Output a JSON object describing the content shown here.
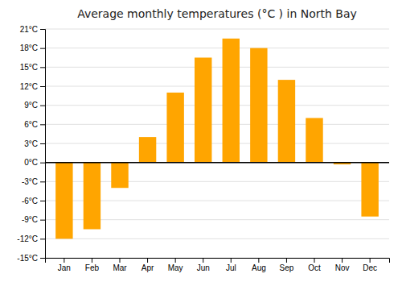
{
  "chart_data": {
    "type": "bar",
    "title": "Average monthly temperatures (°C ) in North Bay",
    "categories": [
      "Jan",
      "Feb",
      "Mar",
      "Apr",
      "May",
      "Jun",
      "Jul",
      "Aug",
      "Sep",
      "Oct",
      "Nov",
      "Dec"
    ],
    "values": [
      -12,
      -10.5,
      -4,
      4,
      11,
      16.5,
      19.5,
      18,
      13,
      7,
      -0.3,
      -8.5
    ],
    "color": "#FFA500",
    "ylim": [
      -15,
      21
    ],
    "yticks": [
      {
        "value": -15,
        "label": "-15°C"
      },
      {
        "value": -12,
        "label": "-12°C"
      },
      {
        "value": -9,
        "label": "-9°C"
      },
      {
        "value": -6,
        "label": "-6°C"
      },
      {
        "value": -3,
        "label": "-3°C"
      },
      {
        "value": 0,
        "label": "0°C"
      },
      {
        "value": 3,
        "label": "3°C"
      },
      {
        "value": 6,
        "label": "6°C"
      },
      {
        "value": 9,
        "label": "9°C"
      },
      {
        "value": 12,
        "label": "12°C"
      },
      {
        "value": 15,
        "label": "15°C"
      },
      {
        "value": 18,
        "label": "18°C"
      },
      {
        "value": 21,
        "label": "21°C"
      }
    ],
    "grid": true
  }
}
